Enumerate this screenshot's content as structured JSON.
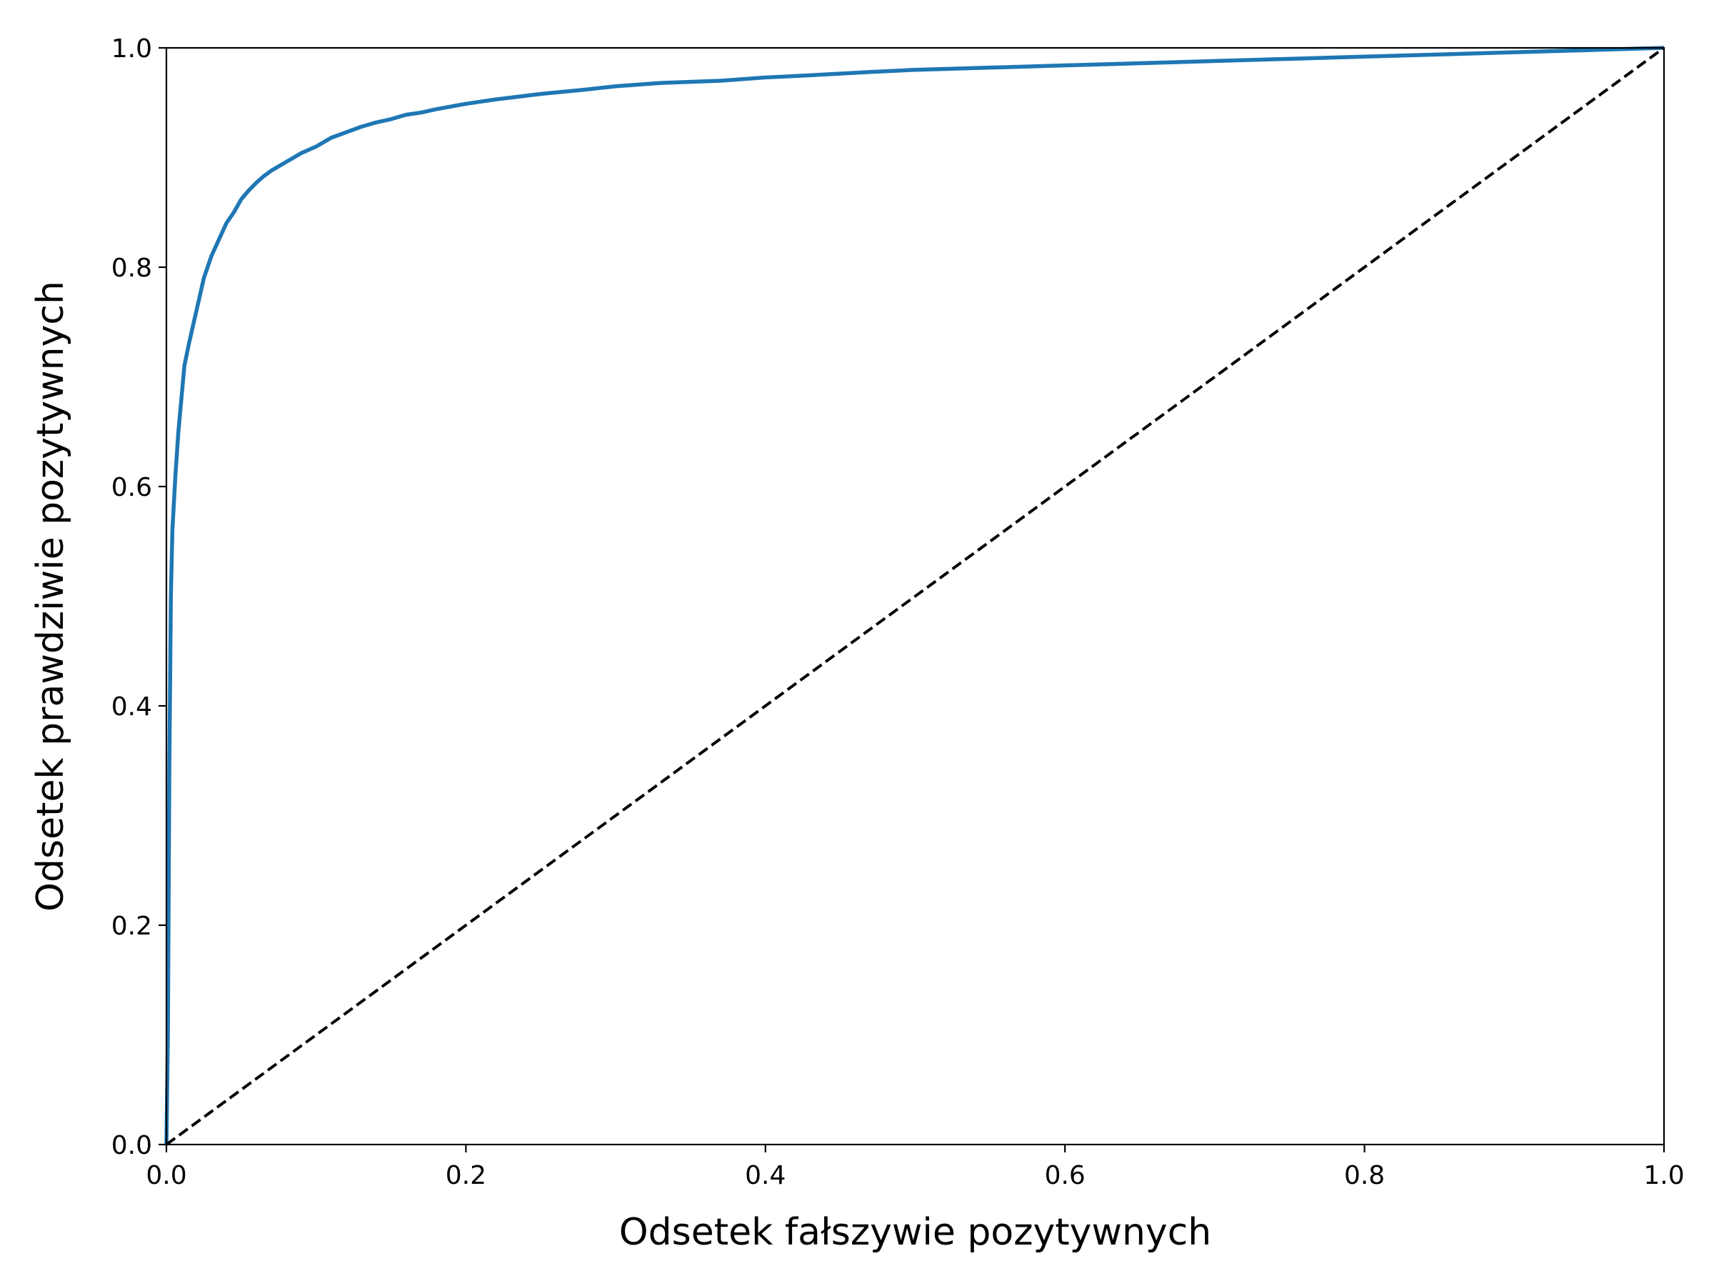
{
  "chart_data": {
    "type": "line",
    "title": "",
    "xlabel": "Odsetek fałszywie pozytywnych",
    "ylabel": "Odsetek prawdziwie pozytywnych",
    "xlim": [
      0.0,
      1.0
    ],
    "ylim": [
      0.0,
      1.0
    ],
    "x_ticks": [
      0.0,
      0.2,
      0.4,
      0.6,
      0.8,
      1.0
    ],
    "y_ticks": [
      0.0,
      0.2,
      0.4,
      0.6,
      0.8,
      1.0
    ],
    "x_tick_labels": [
      "0.0",
      "0.2",
      "0.4",
      "0.6",
      "0.8",
      "1.0"
    ],
    "y_tick_labels": [
      "0.0",
      "0.2",
      "0.4",
      "0.6",
      "0.8",
      "1.0"
    ],
    "grid": false,
    "legend": "none",
    "series": [
      {
        "style": "solid",
        "color": "#1f77b4",
        "points": [
          [
            0.0,
            0.0
          ],
          [
            0.001,
            0.1
          ],
          [
            0.002,
            0.35
          ],
          [
            0.003,
            0.5
          ],
          [
            0.004,
            0.56
          ],
          [
            0.006,
            0.61
          ],
          [
            0.008,
            0.65
          ],
          [
            0.01,
            0.68
          ],
          [
            0.012,
            0.71
          ],
          [
            0.015,
            0.73
          ],
          [
            0.02,
            0.76
          ],
          [
            0.025,
            0.79
          ],
          [
            0.03,
            0.81
          ],
          [
            0.035,
            0.825
          ],
          [
            0.04,
            0.84
          ],
          [
            0.045,
            0.85
          ],
          [
            0.05,
            0.862
          ],
          [
            0.055,
            0.87
          ],
          [
            0.06,
            0.877
          ],
          [
            0.065,
            0.883
          ],
          [
            0.07,
            0.888
          ],
          [
            0.08,
            0.896
          ],
          [
            0.09,
            0.904
          ],
          [
            0.1,
            0.91
          ],
          [
            0.11,
            0.918
          ],
          [
            0.12,
            0.923
          ],
          [
            0.13,
            0.928
          ],
          [
            0.14,
            0.932
          ],
          [
            0.15,
            0.935
          ],
          [
            0.16,
            0.939
          ],
          [
            0.17,
            0.941
          ],
          [
            0.18,
            0.944
          ],
          [
            0.2,
            0.949
          ],
          [
            0.22,
            0.953
          ],
          [
            0.25,
            0.958
          ],
          [
            0.28,
            0.962
          ],
          [
            0.3,
            0.965
          ],
          [
            0.33,
            0.968
          ],
          [
            0.37,
            0.97
          ],
          [
            0.4,
            0.973
          ],
          [
            0.43,
            0.975
          ],
          [
            0.47,
            0.978
          ],
          [
            0.5,
            0.98
          ],
          [
            0.55,
            0.982
          ],
          [
            0.6,
            0.984
          ],
          [
            0.65,
            0.986
          ],
          [
            0.7,
            0.988
          ],
          [
            0.75,
            0.99
          ],
          [
            0.8,
            0.992
          ],
          [
            0.85,
            0.994
          ],
          [
            0.9,
            0.996
          ],
          [
            0.95,
            0.998
          ],
          [
            1.0,
            1.0
          ]
        ]
      },
      {
        "style": "dashed",
        "color": "#000000",
        "points": [
          [
            0.0,
            0.0
          ],
          [
            1.0,
            1.0
          ]
        ]
      }
    ]
  }
}
